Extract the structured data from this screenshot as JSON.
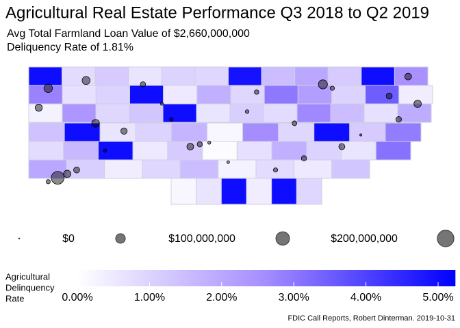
{
  "chart_data": {
    "type": "map",
    "title": "Agricultural Real Estate Performance Q3 2018 to Q2 2019",
    "subtitle": [
      "Avg Total Farmland Loan Value of $2,660,000,000",
      "Deliquency Rate of 1.81%"
    ],
    "caption": "FDIC Call Reports, Robert Dinterman. 2019-10-31",
    "counties": [
      [
        5.0,
        0.8,
        1.2,
        0.6,
        1.0,
        0.9,
        4.9,
        1.5,
        2.0,
        1.2,
        5.0,
        2.5
      ],
      [
        2.8,
        0.7,
        1.0,
        5.0,
        0.5,
        1.8,
        0.9,
        3.0,
        2.2,
        1.0,
        3.5,
        0.4
      ],
      [
        0.3,
        2.4,
        0.9,
        1.3,
        5.0,
        0.6,
        1.1,
        0.8,
        2.7,
        1.5,
        0.7,
        1.9
      ],
      [
        1.4,
        5.0,
        0.6,
        1.0,
        1.7,
        0.2,
        2.6,
        0.9,
        5.0,
        1.2,
        2.9
      ],
      [
        0.8,
        1.6,
        5.0,
        0.5,
        1.2,
        0.1,
        0.7,
        1.8,
        1.0,
        0.6,
        3.1
      ],
      [
        2.0,
        1.1,
        0.4,
        0.9,
        1.5,
        0.3,
        0.8,
        0.5,
        1.3
      ],
      [
        0.2,
        0.6,
        5.0,
        0.4,
        5.0,
        0.9
      ]
    ],
    "points": {
      "lon": [
        -84.5,
        -84.4,
        -84.6,
        -84.3,
        -83.0,
        -82.9,
        -83.1,
        -81.7,
        -81.6,
        -81.0,
        -80.7,
        -84.2,
        -83.6,
        -82.5,
        -82.0,
        -81.3,
        -80.9,
        -83.8,
        -84.7,
        -84.0,
        -82.7,
        -82.2,
        -81.9,
        -83.4,
        -80.8,
        -84.1,
        -83.3,
        -82.4,
        -81.5,
        -84.6
      ],
      "lat": [
        39.1,
        39.2,
        39.0,
        39.3,
        39.96,
        40.0,
        39.9,
        41.5,
        41.4,
        41.2,
        41.0,
        41.6,
        41.5,
        40.8,
        40.5,
        40.2,
        40.6,
        40.3,
        40.9,
        39.8,
        39.5,
        39.3,
        39.6,
        41.0,
        41.7,
        40.5,
        40.6,
        41.3,
        39.9,
        41.4
      ],
      "value": [
        180000000,
        60000000,
        20000000,
        40000000,
        30000000,
        10000000,
        50000000,
        90000000,
        20000000,
        40000000,
        60000000,
        70000000,
        30000000,
        15000000,
        25000000,
        5000000,
        35000000,
        45000000,
        55000000,
        12000000,
        8000000,
        20000000,
        30000000,
        10000000,
        50000000,
        65000000,
        15000000,
        22000000,
        40000000,
        80000000
      ]
    },
    "size_legend": [
      {
        "value": 0,
        "label": "$0"
      },
      {
        "value": 100000000,
        "label": "$100,000,000"
      },
      {
        "value": 200000000,
        "label": "$200,000,000"
      },
      {
        "value": 300000000,
        "label": null
      }
    ],
    "color_title": [
      "Agricultural",
      "Delinquency",
      "Rate"
    ],
    "color_lim": [
      0,
      5.24
    ],
    "color_ticks": [
      {
        "value": 0,
        "label": "0.00%"
      },
      {
        "value": 1,
        "label": "1.00%"
      },
      {
        "value": 2,
        "label": "2.00%"
      },
      {
        "value": 3,
        "label": "3.00%"
      },
      {
        "value": 4,
        "label": "4.00%"
      },
      {
        "value": 5,
        "label": "5.00%"
      }
    ],
    "colors": {
      "low": "#ffffff",
      "mid": "#a58cff",
      "high": "#0000ff",
      "point": "#000000",
      "border": "#cfcfe0"
    }
  }
}
